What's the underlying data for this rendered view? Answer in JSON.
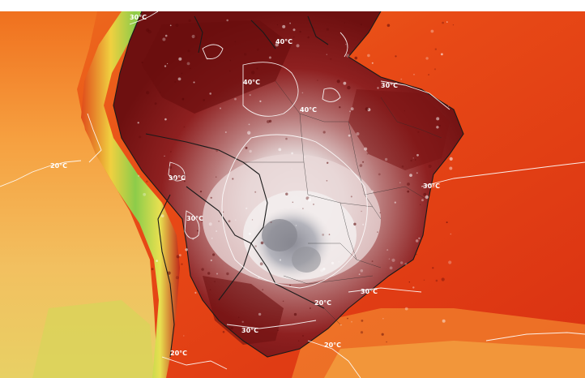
{
  "map": {
    "type": "temperature-map",
    "region": "South America",
    "contour_labels": [
      "20°C",
      "30°C",
      "30°C",
      "40°C",
      "40°C",
      "40°C",
      "30°C",
      "30°C",
      "30°C",
      "30°C",
      "20°C",
      "30°C",
      "20°C",
      "20°C"
    ],
    "colors": {
      "ocean_cool": "#f4c36a",
      "ocean_warm": "#ee5a1a",
      "ocean_hot": "#de3215",
      "land_hot": "#8b1a1a",
      "land_extreme": "#5e0e0e",
      "land_pale": "#d6b8b8",
      "land_white": "#f2eeee",
      "land_gray": "#9a9aa2",
      "andes_green": "#8fcf4a",
      "andes_yellow": "#e8e04a",
      "border": "#1a1a1a",
      "contour": "#ffffff"
    }
  }
}
